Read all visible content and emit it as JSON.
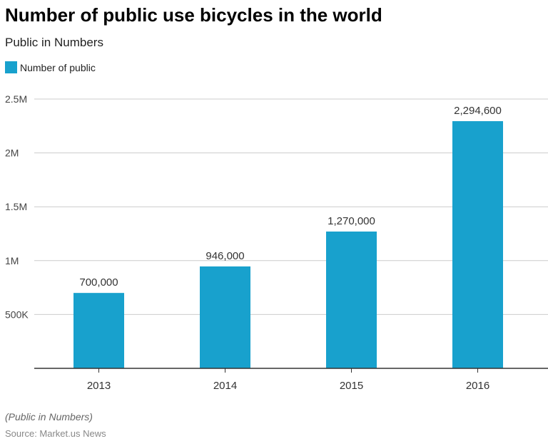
{
  "title": "Number of public use bicycles in the world",
  "subtitle": "Public in Numbers",
  "note": "(Public in Numbers)",
  "source": "Source: Market.us News",
  "colors": {
    "bar": "#18a1cd"
  },
  "chart_data": {
    "type": "bar",
    "categories": [
      "2013",
      "2014",
      "2015",
      "2016"
    ],
    "series": [
      {
        "name": "Number of public",
        "values": [
          700000,
          946000,
          1270000,
          2294600
        ]
      }
    ],
    "data_labels": [
      "700,000",
      "946,000",
      "1,270,000",
      "2,294,600"
    ],
    "yticks": [
      {
        "value": 500000,
        "label": "500K"
      },
      {
        "value": 1000000,
        "label": "1M"
      },
      {
        "value": 1500000,
        "label": "1.5M"
      },
      {
        "value": 2000000,
        "label": "2M"
      },
      {
        "value": 2500000,
        "label": "2.5M"
      }
    ],
    "ylim": [
      0,
      2500000
    ],
    "grid": true,
    "legend": "top-left",
    "xlabel": "",
    "ylabel": ""
  }
}
